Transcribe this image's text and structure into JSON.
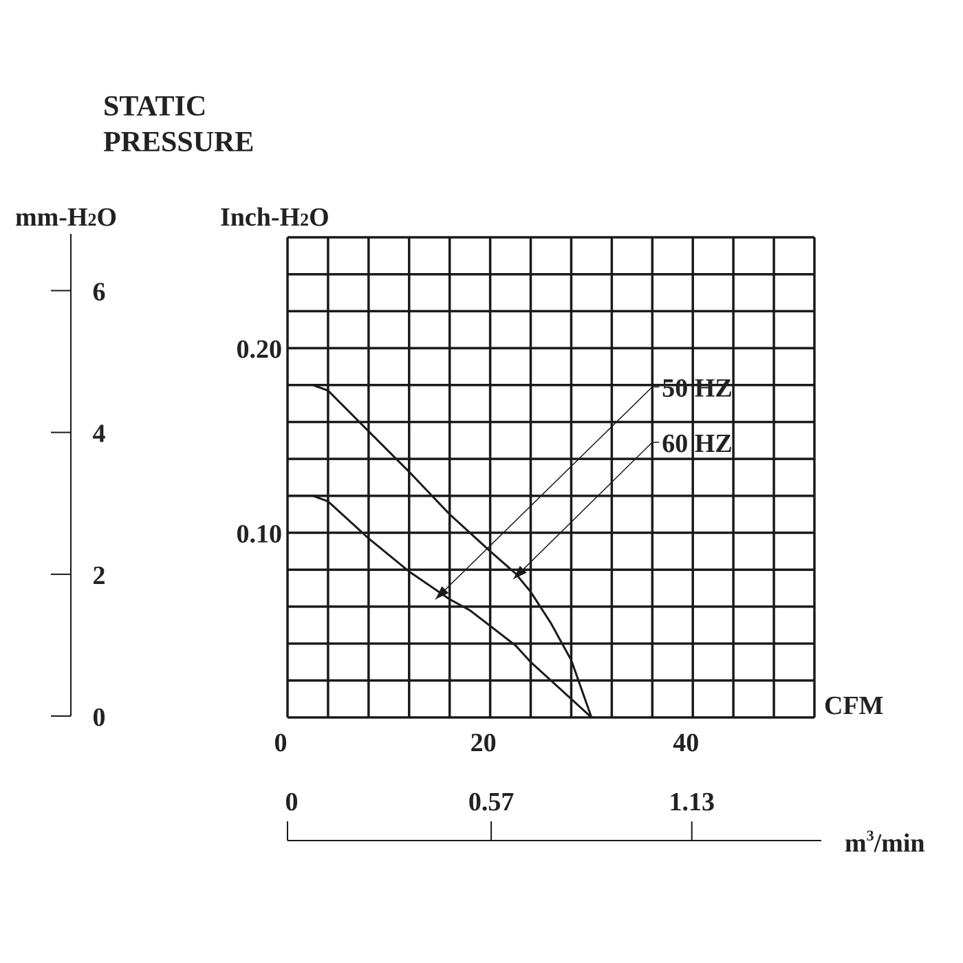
{
  "chart_data": {
    "type": "line",
    "title_lines": [
      "STATIC",
      "PRESSURE"
    ],
    "mm_axis": {
      "label_parts": [
        "mm-H",
        "2",
        "O"
      ],
      "ticks": [
        {
          "value": 0,
          "label": "0"
        },
        {
          "value": 2,
          "label": "2"
        },
        {
          "value": 4,
          "label": "4"
        },
        {
          "value": 6,
          "label": "6"
        }
      ],
      "range": [
        0,
        6.8
      ]
    },
    "y_axis": {
      "label_parts": [
        "Inch-H",
        "2",
        "O"
      ],
      "ticks": [
        {
          "value": 0.1,
          "label": "0.10"
        },
        {
          "value": 0.2,
          "label": "0.20"
        }
      ],
      "range": [
        0,
        0.26
      ],
      "grid_rows": 13
    },
    "x_axis": {
      "label": "CFM",
      "ticks": [
        {
          "value": 0,
          "label": "0"
        },
        {
          "value": 20,
          "label": "20"
        },
        {
          "value": 40,
          "label": "40"
        }
      ],
      "range": [
        0,
        52
      ],
      "grid_cols": 13
    },
    "x2_axis": {
      "label_base": "m",
      "label_sup": "3",
      "label_rest": "/min",
      "ticks": [
        {
          "cfm": 0,
          "label": "0"
        },
        {
          "cfm": 20.1,
          "label": "0.57"
        },
        {
          "cfm": 39.9,
          "label": "1.13"
        }
      ]
    },
    "series": [
      {
        "name": "50 HZ",
        "x": [
          0,
          2.5,
          4,
          8,
          12,
          16,
          18,
          22.5,
          24,
          26,
          28,
          30
        ],
        "y": [
          0.12,
          0.12,
          0.117,
          0.097,
          0.079,
          0.064,
          0.058,
          0.039,
          0.03,
          0.02,
          0.01,
          0
        ],
        "label_anchor": {
          "x": 36,
          "y": 0.179
        },
        "arrow_point": {
          "x": 14.6,
          "y": 0.064
        }
      },
      {
        "name": "60 HZ",
        "x": [
          0,
          2.5,
          4,
          8,
          12,
          16,
          20,
          22.5,
          24,
          26,
          28,
          30
        ],
        "y": [
          0.18,
          0.18,
          0.177,
          0.155,
          0.133,
          0.11,
          0.09,
          0.078,
          0.068,
          0.051,
          0.031,
          0
        ],
        "label_anchor": {
          "x": 36,
          "y": 0.149
        },
        "arrow_point": {
          "x": 22.3,
          "y": 0.075
        }
      }
    ],
    "grid": true
  }
}
